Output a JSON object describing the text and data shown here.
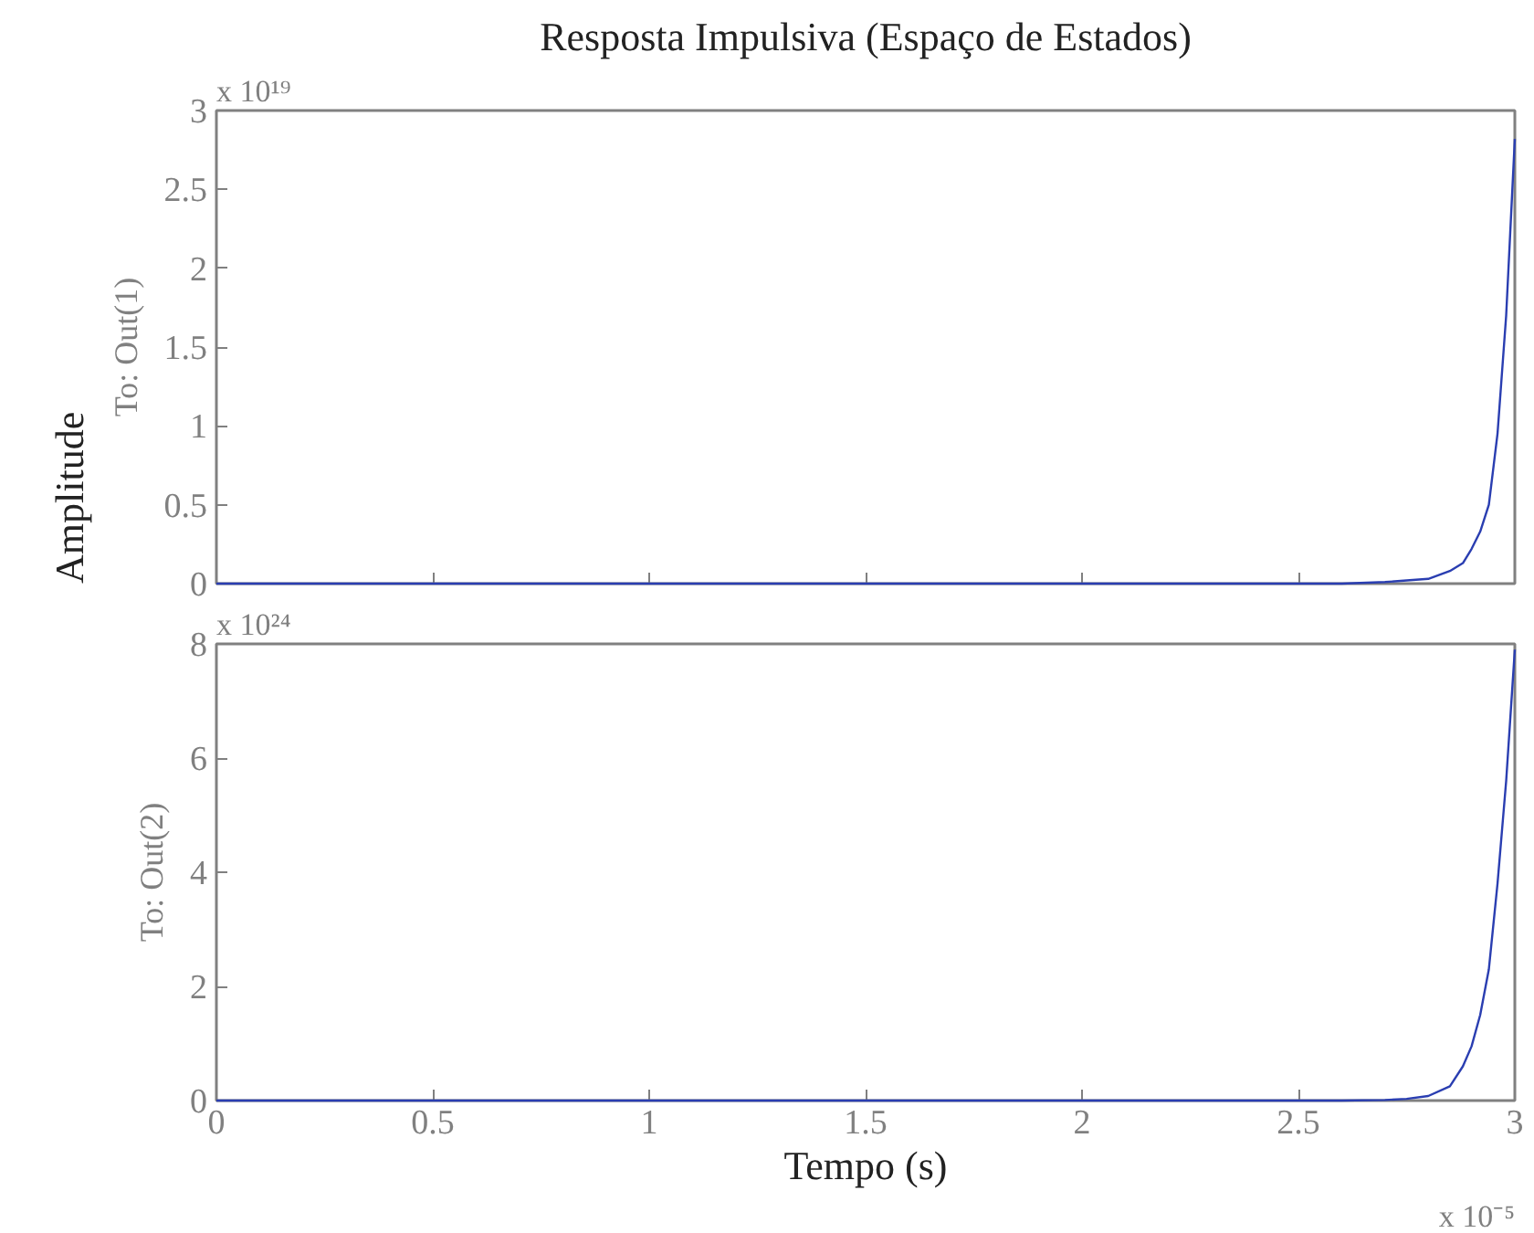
{
  "chart_data": [
    {
      "type": "line",
      "title": "Resposta Impulsiva (Espaço de Estados)",
      "ylabel": "To: Out(1)",
      "annotations": [
        "x 10¹⁹",
        "Amplitude"
      ],
      "x": [
        0,
        0.5,
        1,
        1.5,
        2,
        2.5,
        2.6,
        2.7,
        2.75,
        2.8,
        2.85,
        2.88,
        2.9,
        2.92,
        2.94,
        2.96,
        2.98,
        3
      ],
      "series": [
        {
          "color": "#2a3eb1",
          "values": [
            0,
            0,
            0,
            0,
            0,
            0,
            0,
            0.01,
            0.02,
            0.03,
            0.08,
            0.13,
            0.22,
            0.33,
            0.5,
            0.95,
            1.7,
            2.82
          ]
        }
      ],
      "xlim": [
        0,
        3
      ],
      "xticks": [
        0,
        0.5,
        1,
        1.5,
        2,
        2.5,
        3
      ],
      "ylim": [
        0,
        3
      ],
      "yticks": [
        0,
        0.5,
        1,
        1.5,
        2,
        2.5,
        3
      ],
      "tick_labels": "y",
      "grid": false
    },
    {
      "type": "line",
      "xlabel": "Tempo (s)",
      "ylabel": "To: Out(2)",
      "annotations": [
        "x 10²⁴",
        "x 10⁻⁵"
      ],
      "x": [
        0,
        0.5,
        1,
        1.5,
        2,
        2.5,
        2.6,
        2.7,
        2.75,
        2.8,
        2.85,
        2.88,
        2.9,
        2.92,
        2.94,
        2.96,
        2.98,
        3
      ],
      "series": [
        {
          "color": "#2a3eb1",
          "values": [
            0,
            0,
            0,
            0,
            0,
            0,
            0,
            0.01,
            0.03,
            0.08,
            0.25,
            0.6,
            0.95,
            1.5,
            2.3,
            3.8,
            5.6,
            7.9
          ]
        }
      ],
      "xlim": [
        0,
        3
      ],
      "xticks": [
        0,
        0.5,
        1,
        1.5,
        2,
        2.5,
        3
      ],
      "ylim": [
        0,
        8
      ],
      "yticks": [
        0,
        2,
        4,
        6,
        8
      ],
      "grid": false
    }
  ]
}
